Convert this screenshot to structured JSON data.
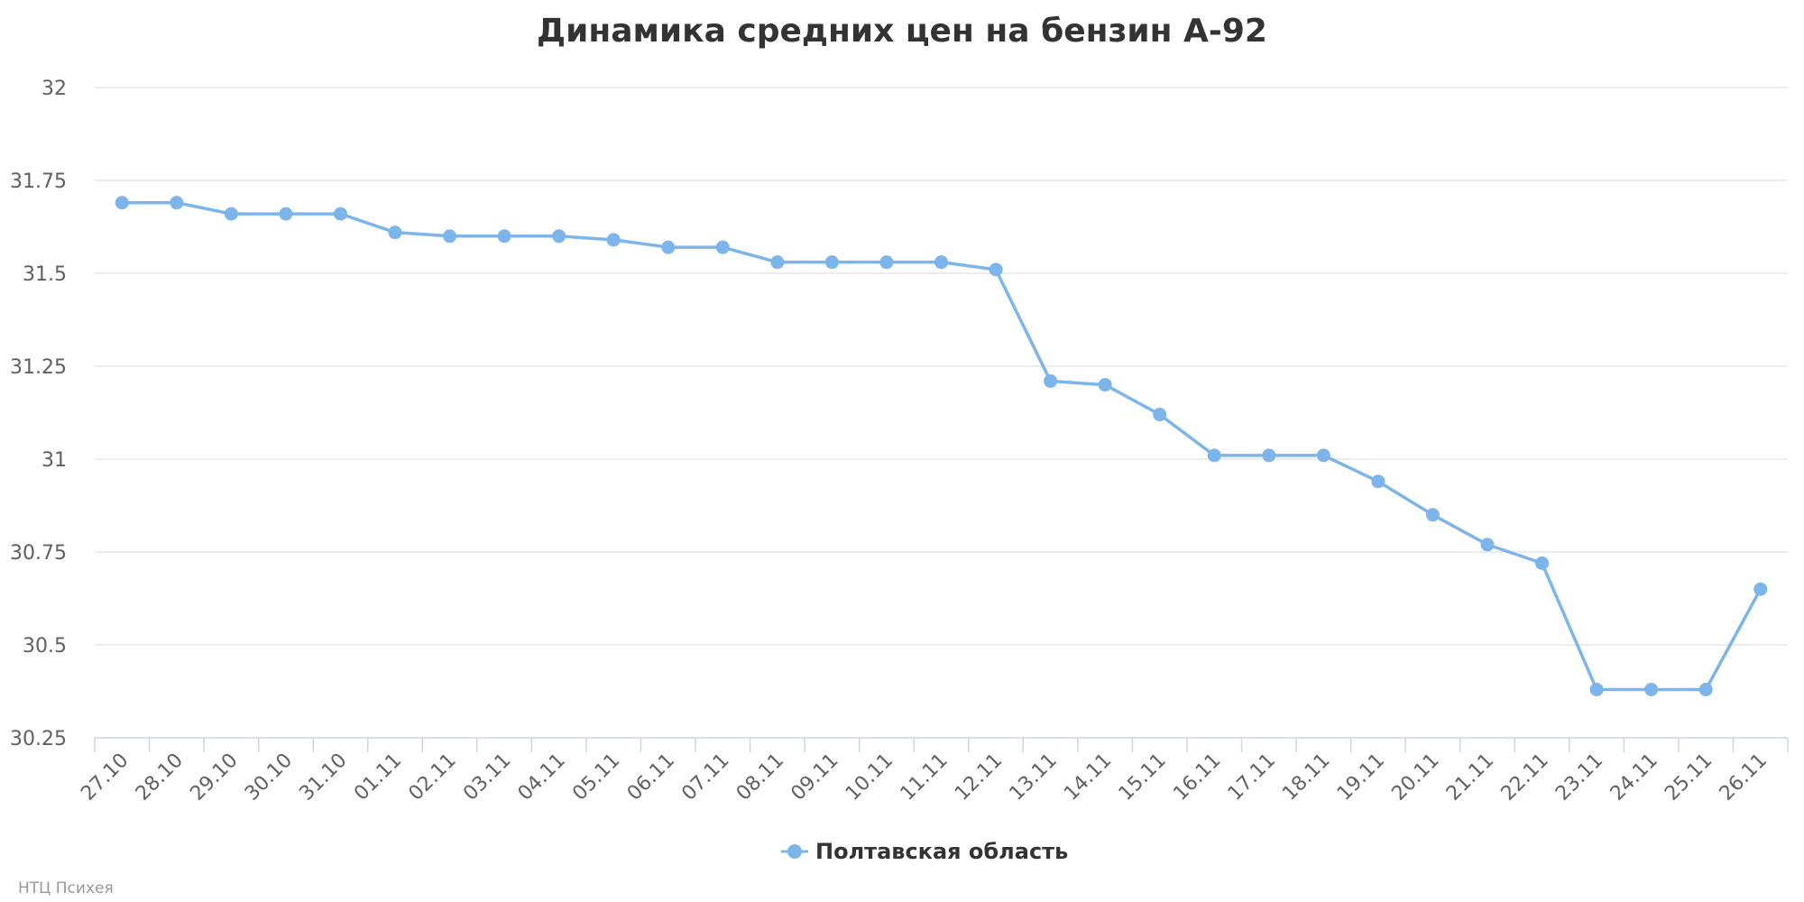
{
  "chart_data": {
    "type": "line",
    "title": "Динамика средних цен на бензин А-92",
    "xlabel": "",
    "ylabel": "",
    "categories": [
      "27.10",
      "28.10",
      "29.10",
      "30.10",
      "31.10",
      "01.11",
      "02.11",
      "03.11",
      "04.11",
      "05.11",
      "06.11",
      "07.11",
      "08.11",
      "09.11",
      "10.11",
      "11.11",
      "12.11",
      "13.11",
      "14.11",
      "15.11",
      "16.11",
      "17.11",
      "18.11",
      "19.11",
      "20.11",
      "21.11",
      "22.11",
      "23.11",
      "24.11",
      "25.11",
      "26.11"
    ],
    "series": [
      {
        "name": "Полтавская область",
        "color": "#7cb5ec",
        "values": [
          31.69,
          31.69,
          31.66,
          31.66,
          31.66,
          31.61,
          31.6,
          31.6,
          31.6,
          31.59,
          31.57,
          31.57,
          31.53,
          31.53,
          31.53,
          31.53,
          31.51,
          31.21,
          31.2,
          31.12,
          31.01,
          31.01,
          31.01,
          30.94,
          30.85,
          30.77,
          30.72,
          30.38,
          30.38,
          30.38,
          30.65
        ]
      }
    ],
    "ylim": [
      30.25,
      32
    ],
    "yticks": [
      "32",
      "31.75",
      "31.5",
      "31.25",
      "31",
      "30.75",
      "30.5",
      "30.25"
    ],
    "ytick_values": [
      32,
      31.75,
      31.5,
      31.25,
      31,
      30.75,
      30.5,
      30.25
    ],
    "grid": true,
    "legend_position": "bottom-center",
    "credit": "НТЦ Психея"
  }
}
